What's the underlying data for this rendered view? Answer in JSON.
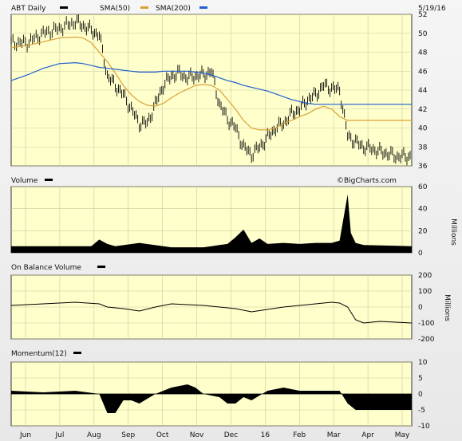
{
  "header": {
    "symbol_label": "ABT Daily",
    "sma50_label": "SMA(50)",
    "sma200_label": "SMA(200)",
    "date": "5/19/16",
    "watermark": "©BigCharts.com"
  },
  "colors": {
    "panel_bg": "#ffffcc",
    "grid": "#c8c8a0",
    "price_bars": "#000000",
    "sma50": "#d9a035",
    "sma200": "#1f5fd0",
    "volume": "#000000",
    "obv": "#000000",
    "momentum": "#000000"
  },
  "x_axis": {
    "months": [
      "Jun",
      "Jul",
      "Aug",
      "Sep",
      "Oct",
      "Nov",
      "Dec",
      "16",
      "Feb",
      "Mar",
      "Apr",
      "May"
    ]
  },
  "chart_data": [
    {
      "type": "line",
      "panel": "price",
      "ylim": [
        36,
        52
      ],
      "yticks": [
        36,
        38,
        40,
        42,
        44,
        46,
        48,
        50,
        52
      ],
      "x": [
        0,
        10,
        20,
        30,
        40,
        45,
        50,
        55,
        60,
        65,
        70,
        75,
        80,
        85,
        90,
        95,
        100,
        105,
        110,
        115,
        120,
        125,
        130,
        135,
        140,
        145,
        150,
        155,
        160,
        165,
        170,
        175,
        180,
        185,
        190,
        195,
        200,
        205,
        210,
        215,
        220,
        225,
        230,
        235,
        240,
        245,
        250
      ],
      "series": [
        {
          "name": "ABT Daily",
          "values": [
            49,
            49,
            50,
            50.5,
            51.2,
            50.8,
            50.3,
            49.8,
            45.5,
            44.5,
            43.5,
            42,
            40.5,
            40.5,
            42.5,
            44.5,
            45.5,
            45.8,
            45.3,
            45.5,
            45.6,
            46,
            42.5,
            41,
            40,
            38,
            37.2,
            38,
            39,
            40,
            40.5,
            41.5,
            42,
            43,
            43.5,
            44.5,
            44.2,
            44,
            39.2,
            38.5,
            38,
            37.8,
            37.5,
            37.3,
            37,
            37,
            37
          ]
        },
        {
          "name": "SMA(50)",
          "values": [
            48.5,
            48.7,
            49.1,
            49.5,
            49.6,
            49.5,
            49,
            48,
            47,
            45.8,
            44.5,
            43.5,
            42.8,
            42.4,
            42.3,
            42.6,
            43.2,
            43.7,
            44.1,
            44.5,
            44.6,
            44.5,
            44,
            43,
            42,
            40.8,
            40,
            39.8,
            39.8,
            40,
            40.5,
            40.8,
            41.2,
            41.5,
            42,
            42.3,
            42,
            41.2,
            40.8,
            40.8,
            40.8,
            40.8,
            40.8,
            40.8,
            40.8,
            40.8,
            40.8
          ]
        },
        {
          "name": "SMA(200)",
          "values": [
            45,
            45.6,
            46.3,
            46.8,
            46.9,
            46.8,
            46.6,
            46.4,
            46.3,
            46.2,
            46.1,
            46,
            45.9,
            45.9,
            45.9,
            46,
            46,
            46,
            46,
            45.9,
            45.8,
            45.6,
            45.3,
            45,
            44.8,
            44.5,
            44.3,
            44.1,
            43.9,
            43.6,
            43.3,
            43,
            42.8,
            42.6,
            42.5,
            42.5,
            42.5,
            42.5,
            42.5,
            42.5,
            42.5,
            42.5,
            42.5,
            42.5,
            42.5,
            42.5,
            42.5
          ]
        }
      ]
    },
    {
      "type": "area",
      "panel": "volume",
      "title": "Volume",
      "ylabel": "Millions",
      "ylim": [
        0,
        60
      ],
      "yticks": [
        0,
        20,
        40,
        60
      ],
      "x": [
        0,
        50,
        55,
        60,
        65,
        80,
        100,
        120,
        125,
        130,
        135,
        140,
        145,
        150,
        155,
        160,
        170,
        180,
        190,
        200,
        205,
        210,
        212,
        215,
        220,
        250
      ],
      "series": [
        {
          "name": "Volume",
          "values": [
            6,
            6,
            12,
            8,
            6,
            9,
            5,
            5,
            6,
            7,
            8,
            14,
            21,
            9,
            13,
            8,
            9,
            8,
            9,
            9,
            11,
            53,
            18,
            9,
            7,
            6
          ]
        }
      ]
    },
    {
      "type": "line",
      "panel": "obv",
      "title": "On Balance Volume",
      "ylabel": "Millions",
      "ylim": [
        -200,
        200
      ],
      "yticks": [
        -200,
        -100,
        0,
        100,
        200
      ],
      "x": [
        0,
        20,
        40,
        55,
        60,
        70,
        80,
        90,
        100,
        110,
        120,
        130,
        140,
        150,
        160,
        170,
        180,
        190,
        200,
        205,
        210,
        215,
        220,
        230,
        250
      ],
      "series": [
        {
          "name": "On Balance Volume",
          "values": [
            10,
            20,
            30,
            20,
            0,
            -10,
            -25,
            0,
            20,
            15,
            10,
            0,
            -10,
            -30,
            -15,
            0,
            10,
            20,
            30,
            25,
            0,
            -80,
            -100,
            -90,
            -100
          ]
        }
      ]
    },
    {
      "type": "area",
      "panel": "momentum",
      "title": "Momentum(12)",
      "ylim": [
        -10,
        10
      ],
      "yticks": [
        -10,
        -5,
        0,
        5,
        10
      ],
      "x": [
        0,
        20,
        40,
        55,
        60,
        65,
        70,
        75,
        80,
        90,
        100,
        110,
        115,
        120,
        130,
        135,
        140,
        145,
        150,
        160,
        170,
        180,
        190,
        200,
        205,
        210,
        215,
        220,
        250
      ],
      "series": [
        {
          "name": "Momentum(12)",
          "values": [
            1,
            0.5,
            1,
            0,
            -6,
            -6,
            -2,
            -2,
            -3,
            0,
            2,
            3,
            2,
            0,
            -1,
            -3,
            -3,
            -1,
            -2,
            1,
            2,
            1,
            1,
            1,
            1,
            -3,
            -5,
            -5,
            -5
          ]
        }
      ]
    }
  ]
}
